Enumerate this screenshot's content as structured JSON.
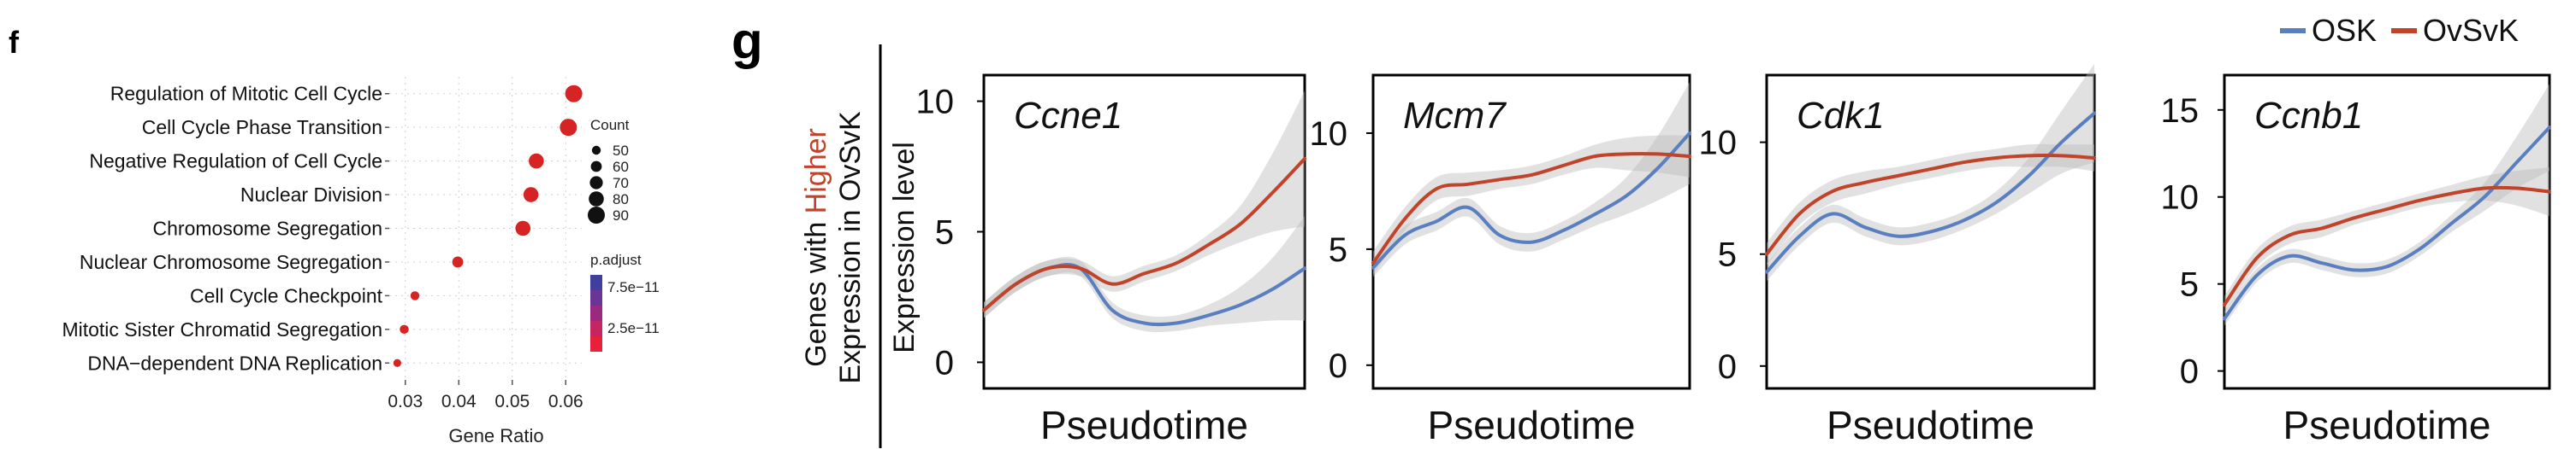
{
  "panel_f": {
    "letter": "f"
  },
  "panel_g": {
    "letter": "g",
    "ylabel_prefix": "Genes with ",
    "ylabel_highlight": "Higher",
    "ylabel_line2": "Expression in OvSvK",
    "ylabel_expr": "Expression level"
  },
  "colors": {
    "dot": "#d62323",
    "osk": "#5a7fc0",
    "ovsvk": "#c0432a",
    "ribbon": "#bdbdbd",
    "grid": "#cfcfcf",
    "padj_high": "#3f3f9f",
    "padj_low": "#e8203a"
  },
  "chart_data": [
    {
      "type": "scatter",
      "subtype": "dotplot",
      "categories": [
        "Regulation of Mitotic Cell Cycle",
        "Cell Cycle Phase Transition",
        "Negative Regulation of Cell Cycle",
        "Nuclear Division",
        "Chromosome Segregation",
        "Nuclear Chromosome Segregation",
        "Cell Cycle Checkpoint",
        "Mitotic Sister Chromatid Segregation",
        "DNA−dependent DNA Replication"
      ],
      "values": [
        0.0615,
        0.0605,
        0.0545,
        0.0535,
        0.052,
        0.0398,
        0.0318,
        0.0298,
        0.0285
      ],
      "counts": [
        90,
        90,
        80,
        80,
        80,
        60,
        50,
        50,
        45
      ],
      "xlabel": "Gene Ratio",
      "ylabel": "",
      "xlim": [
        0.027,
        0.063
      ],
      "xticks": [
        0.03,
        0.04,
        0.05,
        0.06
      ],
      "xtick_labels": [
        "0.03",
        "0.04",
        "0.05",
        "0.06"
      ],
      "grid": true,
      "legend_size": {
        "title": "Count",
        "values": [
          "50",
          "60",
          "70",
          "80",
          "90"
        ]
      },
      "legend_color": {
        "title": "p.adjust",
        "labels": [
          "7.5e−11",
          "2.5e−11"
        ]
      },
      "legend_position": "right"
    },
    {
      "type": "line",
      "title": "Ccne1",
      "xlabel": "Pseudotime",
      "ylim": [
        -1,
        11
      ],
      "yticks": [
        0,
        5,
        10
      ],
      "ytick_labels": [
        "0",
        "5",
        "10"
      ],
      "x": [
        0,
        0.1,
        0.2,
        0.3,
        0.4,
        0.5,
        0.6,
        0.7,
        0.8,
        0.9,
        1.0
      ],
      "series": [
        {
          "name": "OSK",
          "values": [
            2.0,
            3.0,
            3.6,
            3.6,
            2.0,
            1.5,
            1.5,
            1.8,
            2.2,
            2.8,
            3.6
          ],
          "band": [
            0.3,
            0.3,
            0.3,
            0.3,
            0.3,
            0.3,
            0.3,
            0.4,
            0.7,
            1.2,
            2.0
          ]
        },
        {
          "name": "OvSvK",
          "values": [
            2.0,
            3.0,
            3.6,
            3.6,
            3.0,
            3.4,
            3.8,
            4.5,
            5.3,
            6.5,
            7.8
          ],
          "band": [
            0.3,
            0.3,
            0.3,
            0.3,
            0.3,
            0.3,
            0.3,
            0.4,
            0.7,
            1.5,
            2.6
          ]
        }
      ]
    },
    {
      "type": "line",
      "title": "Mcm7",
      "xlabel": "Pseudotime",
      "ylim": [
        -1,
        12.5
      ],
      "yticks": [
        0,
        5,
        10
      ],
      "ytick_labels": [
        "0",
        "5",
        "10"
      ],
      "x": [
        0,
        0.1,
        0.2,
        0.3,
        0.4,
        0.5,
        0.6,
        0.7,
        0.8,
        0.9,
        1.0
      ],
      "series": [
        {
          "name": "OSK",
          "values": [
            4.2,
            5.6,
            6.2,
            6.8,
            5.6,
            5.3,
            5.8,
            6.5,
            7.3,
            8.5,
            10.0
          ],
          "band": [
            0.4,
            0.4,
            0.4,
            0.4,
            0.4,
            0.4,
            0.4,
            0.5,
            0.8,
            1.4,
            2.2
          ]
        },
        {
          "name": "OvSvK",
          "values": [
            4.4,
            6.3,
            7.6,
            7.8,
            8.0,
            8.2,
            8.6,
            9.0,
            9.1,
            9.1,
            9.0
          ],
          "band": [
            0.5,
            0.5,
            0.5,
            0.5,
            0.4,
            0.4,
            0.4,
            0.5,
            0.7,
            0.8,
            0.9
          ]
        }
      ]
    },
    {
      "type": "line",
      "title": "Cdk1",
      "xlabel": "Pseudotime",
      "ylim": [
        -1,
        13
      ],
      "yticks": [
        0,
        5,
        10
      ],
      "ytick_labels": [
        "0",
        "5",
        "10"
      ],
      "x": [
        0,
        0.1,
        0.2,
        0.3,
        0.4,
        0.5,
        0.6,
        0.7,
        0.8,
        0.9,
        1.0
      ],
      "series": [
        {
          "name": "OSK",
          "values": [
            4.2,
            5.8,
            6.8,
            6.2,
            5.8,
            6.0,
            6.5,
            7.3,
            8.5,
            10.0,
            11.3
          ],
          "band": [
            0.4,
            0.4,
            0.4,
            0.4,
            0.4,
            0.4,
            0.4,
            0.5,
            0.8,
            1.4,
            2.2
          ]
        },
        {
          "name": "OvSvK",
          "values": [
            5.0,
            6.8,
            7.8,
            8.2,
            8.5,
            8.8,
            9.1,
            9.3,
            9.4,
            9.4,
            9.3
          ],
          "band": [
            0.5,
            0.5,
            0.5,
            0.5,
            0.4,
            0.4,
            0.4,
            0.4,
            0.5,
            0.5,
            0.6
          ]
        }
      ]
    },
    {
      "type": "line",
      "title": "Ccnb1",
      "xlabel": "Pseudotime",
      "ylim": [
        -1,
        17
      ],
      "yticks": [
        0,
        5,
        10,
        15
      ],
      "ytick_labels": [
        "0",
        "5",
        "10",
        "15"
      ],
      "x": [
        0,
        0.1,
        0.2,
        0.3,
        0.4,
        0.5,
        0.6,
        0.7,
        0.8,
        0.9,
        1.0
      ],
      "series": [
        {
          "name": "OSK",
          "values": [
            3.0,
            5.5,
            6.6,
            6.2,
            5.8,
            6.0,
            7.0,
            8.5,
            10.0,
            12.0,
            14.0
          ],
          "band": [
            0.4,
            0.4,
            0.4,
            0.4,
            0.4,
            0.4,
            0.4,
            0.5,
            0.8,
            1.5,
            2.5
          ]
        },
        {
          "name": "OvSvK",
          "values": [
            3.8,
            6.5,
            7.8,
            8.2,
            8.8,
            9.3,
            9.8,
            10.2,
            10.5,
            10.5,
            10.3
          ],
          "band": [
            0.5,
            0.5,
            0.5,
            0.5,
            0.4,
            0.4,
            0.4,
            0.5,
            0.7,
            1.0,
            1.4
          ]
        }
      ]
    }
  ]
}
